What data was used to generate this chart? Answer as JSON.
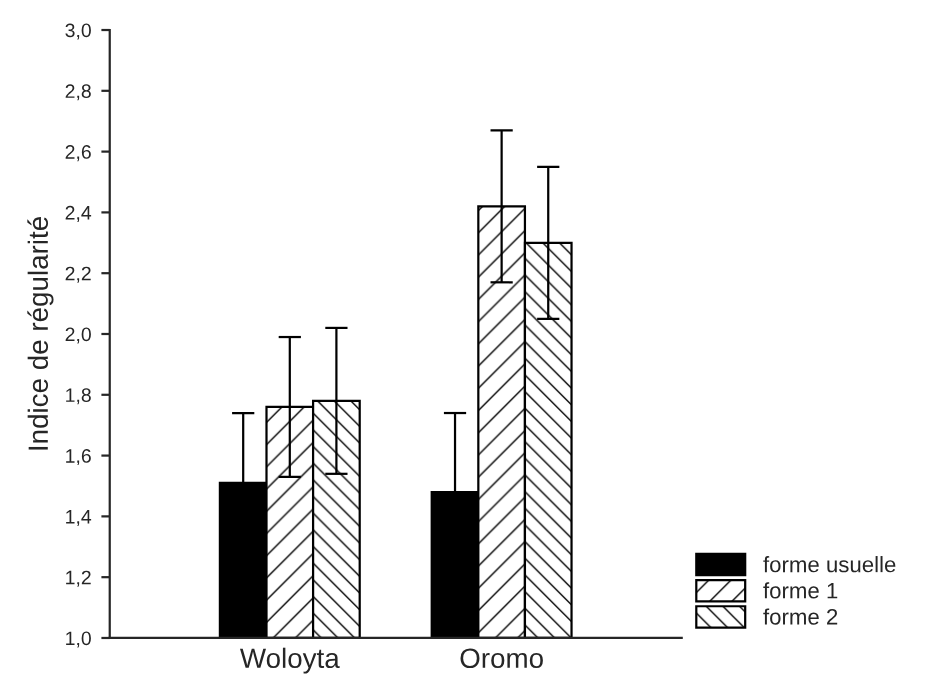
{
  "chart_data": {
    "type": "bar",
    "ylabel": "Indice de régularité",
    "categories": [
      "Woloyta",
      "Oromo"
    ],
    "series": [
      {
        "name": "forme usuelle",
        "color": "#000000",
        "values": [
          1.51,
          1.48
        ],
        "errors": [
          0.23,
          0.26
        ]
      },
      {
        "name": "forme 1",
        "color": "#000000",
        "values": [
          1.76,
          2.42
        ],
        "errors": [
          0.23,
          0.25
        ]
      },
      {
        "name": "forme 2",
        "color": "#000000",
        "values": [
          1.78,
          2.3
        ],
        "errors": [
          0.24,
          0.25
        ]
      }
    ],
    "ylim": [
      1.0,
      3.0
    ],
    "yticks": [
      {
        "value": 1.0,
        "label": "1,0"
      },
      {
        "value": 1.2,
        "label": "1,2"
      },
      {
        "value": 1.4,
        "label": "1,4"
      },
      {
        "value": 1.6,
        "label": "1,6"
      },
      {
        "value": 1.8,
        "label": "1,8"
      },
      {
        "value": 2.0,
        "label": "2,0"
      },
      {
        "value": 2.2,
        "label": "2,2"
      },
      {
        "value": 2.4,
        "label": "2,4"
      },
      {
        "value": 2.6,
        "label": "2,6"
      },
      {
        "value": 2.8,
        "label": "2,8"
      },
      {
        "value": 3.0,
        "label": "3,0"
      }
    ],
    "grid": false,
    "legend": "bottom right"
  }
}
